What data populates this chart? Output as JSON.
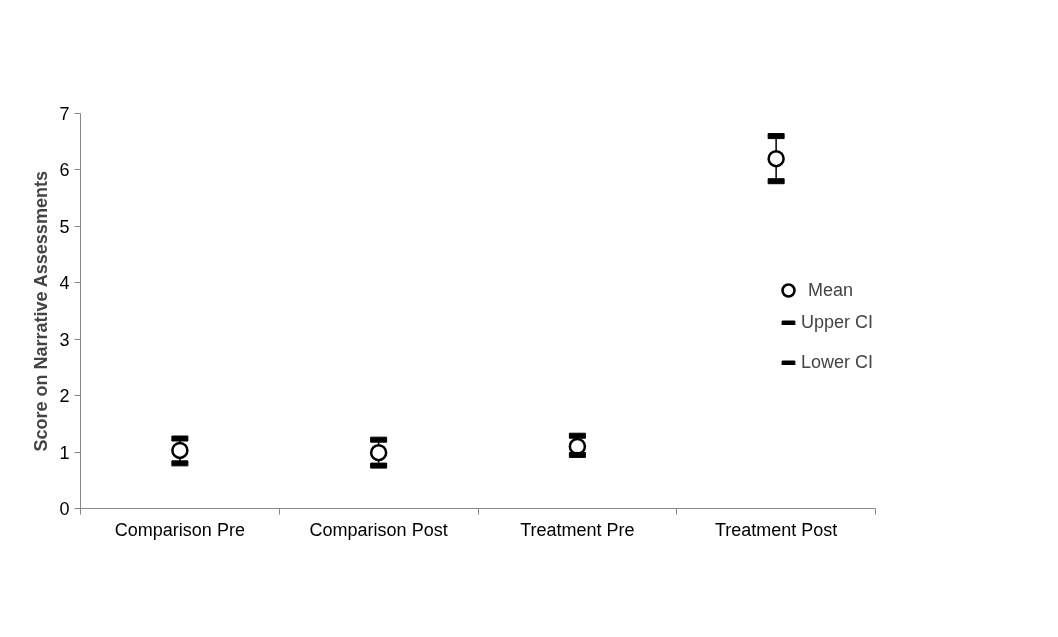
{
  "chart_data": {
    "type": "scatter",
    "ylabel": "Score on Narrative Assessments",
    "categories": [
      "Comparison Pre",
      "Comparison Post",
      "Treatment Pre",
      "Treatment Post"
    ],
    "series": [
      {
        "name": "Mean",
        "color": "#000000",
        "marker": "circle",
        "values": [
          1.03,
          0.99,
          1.1,
          6.2
        ]
      },
      {
        "name": "Upper CI",
        "color": "#000000",
        "values": [
          1.24,
          1.22,
          1.29,
          6.6
        ]
      },
      {
        "name": "Lower CI",
        "color": "#000000",
        "values": [
          0.8,
          0.76,
          0.95,
          5.8
        ]
      }
    ],
    "ylim": [
      0,
      7
    ],
    "yticks": [
      0,
      1,
      2,
      3,
      4,
      5,
      6,
      7
    ],
    "grid": false,
    "legend": "right"
  }
}
